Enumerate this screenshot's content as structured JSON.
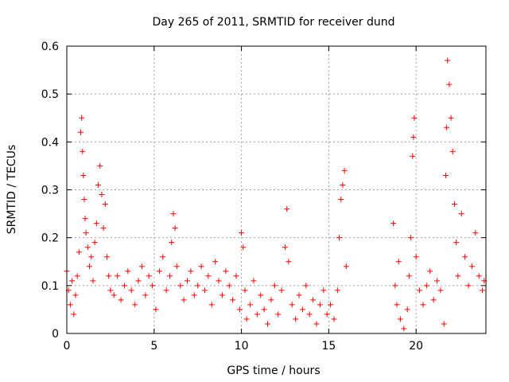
{
  "chart_data": {
    "type": "scatter",
    "title": "Day 265 of 2011, SRMTID for receiver dund",
    "xlabel": "GPS time / hours",
    "ylabel": "SRMTID / TECUs",
    "xlim": [
      0,
      24
    ],
    "ylim": [
      0,
      0.6
    ],
    "xticks": [
      0,
      5,
      10,
      15,
      20
    ],
    "yticks": [
      0,
      0.1,
      0.2,
      0.3,
      0.4,
      0.5,
      0.6
    ],
    "xtick_labels": [
      "0",
      "5",
      "10",
      "15",
      "20"
    ],
    "ytick_labels": [
      "0",
      "0.1",
      "0.2",
      "0.3",
      "0.4",
      "0.5",
      "0.6"
    ],
    "grid": true,
    "marker": "+",
    "color": "#ff0000",
    "series": [
      {
        "name": "dund",
        "points": [
          [
            0.0,
            0.13
          ],
          [
            0.1,
            0.09
          ],
          [
            0.2,
            0.06
          ],
          [
            0.3,
            0.11
          ],
          [
            0.4,
            0.04
          ],
          [
            0.5,
            0.08
          ],
          [
            0.6,
            0.12
          ],
          [
            0.7,
            0.17
          ],
          [
            0.8,
            0.42
          ],
          [
            0.85,
            0.45
          ],
          [
            0.9,
            0.38
          ],
          [
            0.95,
            0.33
          ],
          [
            1.0,
            0.28
          ],
          [
            1.05,
            0.24
          ],
          [
            1.1,
            0.21
          ],
          [
            1.2,
            0.18
          ],
          [
            1.3,
            0.14
          ],
          [
            1.4,
            0.16
          ],
          [
            1.5,
            0.11
          ],
          [
            1.6,
            0.19
          ],
          [
            1.7,
            0.23
          ],
          [
            1.8,
            0.31
          ],
          [
            1.9,
            0.35
          ],
          [
            2.0,
            0.29
          ],
          [
            2.1,
            0.22
          ],
          [
            2.2,
            0.27
          ],
          [
            2.3,
            0.16
          ],
          [
            2.4,
            0.12
          ],
          [
            2.5,
            0.09
          ],
          [
            2.7,
            0.08
          ],
          [
            2.9,
            0.12
          ],
          [
            3.1,
            0.07
          ],
          [
            3.3,
            0.1
          ],
          [
            3.5,
            0.13
          ],
          [
            3.7,
            0.09
          ],
          [
            3.9,
            0.06
          ],
          [
            4.1,
            0.11
          ],
          [
            4.3,
            0.14
          ],
          [
            4.5,
            0.08
          ],
          [
            4.7,
            0.12
          ],
          [
            4.9,
            0.1
          ],
          [
            5.1,
            0.05
          ],
          [
            5.3,
            0.13
          ],
          [
            5.5,
            0.16
          ],
          [
            5.7,
            0.09
          ],
          [
            5.9,
            0.12
          ],
          [
            6.0,
            0.19
          ],
          [
            6.1,
            0.25
          ],
          [
            6.2,
            0.22
          ],
          [
            6.3,
            0.14
          ],
          [
            6.5,
            0.1
          ],
          [
            6.7,
            0.07
          ],
          [
            6.9,
            0.11
          ],
          [
            7.1,
            0.13
          ],
          [
            7.3,
            0.08
          ],
          [
            7.5,
            0.1
          ],
          [
            7.7,
            0.14
          ],
          [
            7.9,
            0.09
          ],
          [
            8.1,
            0.12
          ],
          [
            8.3,
            0.06
          ],
          [
            8.5,
            0.15
          ],
          [
            8.7,
            0.11
          ],
          [
            8.9,
            0.08
          ],
          [
            9.1,
            0.13
          ],
          [
            9.3,
            0.1
          ],
          [
            9.5,
            0.07
          ],
          [
            9.7,
            0.12
          ],
          [
            9.9,
            0.05
          ],
          [
            10.0,
            0.21
          ],
          [
            10.1,
            0.18
          ],
          [
            10.2,
            0.09
          ],
          [
            10.3,
            0.03
          ],
          [
            10.5,
            0.06
          ],
          [
            10.7,
            0.11
          ],
          [
            10.9,
            0.04
          ],
          [
            11.1,
            0.08
          ],
          [
            11.3,
            0.05
          ],
          [
            11.5,
            0.02
          ],
          [
            11.7,
            0.07
          ],
          [
            11.9,
            0.1
          ],
          [
            12.1,
            0.04
          ],
          [
            12.3,
            0.09
          ],
          [
            12.5,
            0.18
          ],
          [
            12.6,
            0.26
          ],
          [
            12.7,
            0.15
          ],
          [
            12.9,
            0.06
          ],
          [
            13.1,
            0.03
          ],
          [
            13.3,
            0.08
          ],
          [
            13.5,
            0.05
          ],
          [
            13.7,
            0.1
          ],
          [
            13.9,
            0.04
          ],
          [
            14.1,
            0.07
          ],
          [
            14.3,
            0.02
          ],
          [
            14.5,
            0.06
          ],
          [
            14.7,
            0.09
          ],
          [
            14.9,
            0.04
          ],
          [
            15.1,
            0.06
          ],
          [
            15.3,
            0.03
          ],
          [
            15.5,
            0.09
          ],
          [
            15.6,
            0.2
          ],
          [
            15.7,
            0.28
          ],
          [
            15.8,
            0.31
          ],
          [
            15.9,
            0.34
          ],
          [
            16.0,
            0.14
          ],
          [
            18.7,
            0.23
          ],
          [
            18.8,
            0.1
          ],
          [
            18.9,
            0.06
          ],
          [
            19.0,
            0.15
          ],
          [
            19.1,
            0.03
          ],
          [
            19.3,
            0.01
          ],
          [
            19.5,
            0.05
          ],
          [
            19.6,
            0.12
          ],
          [
            19.7,
            0.2
          ],
          [
            19.8,
            0.37
          ],
          [
            19.85,
            0.41
          ],
          [
            19.9,
            0.45
          ],
          [
            20.0,
            0.16
          ],
          [
            20.2,
            0.09
          ],
          [
            20.4,
            0.06
          ],
          [
            20.6,
            0.1
          ],
          [
            20.8,
            0.13
          ],
          [
            21.0,
            0.07
          ],
          [
            21.2,
            0.11
          ],
          [
            21.4,
            0.09
          ],
          [
            21.6,
            0.02
          ],
          [
            21.7,
            0.33
          ],
          [
            21.75,
            0.43
          ],
          [
            21.8,
            0.57
          ],
          [
            21.9,
            0.52
          ],
          [
            22.0,
            0.45
          ],
          [
            22.1,
            0.38
          ],
          [
            22.2,
            0.27
          ],
          [
            22.3,
            0.19
          ],
          [
            22.4,
            0.12
          ],
          [
            22.6,
            0.25
          ],
          [
            22.8,
            0.16
          ],
          [
            23.0,
            0.1
          ],
          [
            23.2,
            0.14
          ],
          [
            23.4,
            0.21
          ],
          [
            23.6,
            0.12
          ],
          [
            23.8,
            0.09
          ],
          [
            23.9,
            0.11
          ]
        ]
      }
    ]
  }
}
